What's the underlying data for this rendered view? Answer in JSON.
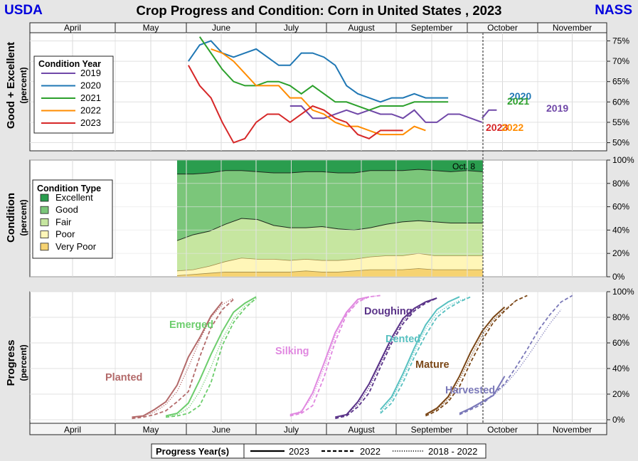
{
  "header": {
    "left": "USDA",
    "right": "NASS",
    "title": "Crop Progress and Condition: Corn in United States , 2023"
  },
  "months": [
    "April",
    "May",
    "June",
    "July",
    "August",
    "September",
    "October",
    "November"
  ],
  "marker_label": "Oct. 8",
  "panels": {
    "good_excellent": {
      "ylabel": "Good + Excellent",
      "ylabel_sub": "(percent)",
      "ticks": [
        "75%",
        "70%",
        "65%",
        "60%",
        "55%",
        "50%"
      ]
    },
    "condition": {
      "ylabel": "Condition",
      "ylabel_sub": "(percent)",
      "ticks": [
        "100%",
        "80%",
        "60%",
        "40%",
        "20%",
        "0%"
      ]
    },
    "progress": {
      "ylabel": "Progress",
      "ylabel_sub": "(percent)",
      "ticks": [
        "100%",
        "80%",
        "60%",
        "40%",
        "20%",
        "0%"
      ]
    }
  },
  "legends": {
    "condition_year": {
      "title": "Condition Year",
      "items": [
        "2019",
        "2020",
        "2021",
        "2022",
        "2023"
      ]
    },
    "condition_type": {
      "title": "Condition Type",
      "items": [
        "Excellent",
        "Good",
        "Fair",
        "Poor",
        "Very Poor"
      ]
    },
    "progress_year": {
      "title": "Progress Year(s)",
      "items": [
        "2023",
        "2022",
        "2018 - 2022"
      ]
    }
  },
  "chart_data": [
    {
      "type": "line",
      "title": "Good + Excellent",
      "x_unit": "week",
      "ylim": [
        48,
        77
      ],
      "series": [
        {
          "name": "2019",
          "color": "#7048a8",
          "x": [
            10,
            11,
            12,
            13,
            14,
            15,
            16,
            17,
            18,
            19,
            20,
            21,
            22,
            23,
            24,
            25,
            26,
            27
          ],
          "values": [
            59,
            59,
            56,
            56,
            57,
            58,
            57,
            58,
            57,
            57,
            56,
            58,
            55,
            55,
            57,
            57,
            56,
            55
          ],
          "end_values": [
            56,
            58,
            58
          ]
        },
        {
          "name": "2020",
          "color": "#1f77b4",
          "x": [
            1,
            2,
            3,
            4,
            5,
            6,
            7,
            8,
            9,
            10,
            11,
            12,
            13,
            14,
            15,
            16,
            17,
            18,
            19,
            20,
            21,
            22,
            23,
            24
          ],
          "values": [
            70,
            74,
            75,
            72,
            71,
            72,
            73,
            71,
            69,
            69,
            72,
            72,
            71,
            69,
            64,
            62,
            61,
            60,
            61,
            61,
            62,
            61,
            61,
            61
          ]
        },
        {
          "name": "2021",
          "color": "#2ca02c",
          "x": [
            2,
            3,
            4,
            5,
            6,
            7,
            8,
            9,
            10,
            11,
            12,
            13,
            14,
            15,
            16,
            17,
            18,
            19,
            20,
            21,
            22,
            23,
            24
          ],
          "values": [
            76,
            72,
            68,
            65,
            64,
            64,
            65,
            65,
            64,
            62,
            64,
            62,
            60,
            60,
            59,
            58,
            59,
            59,
            59,
            60,
            60,
            60,
            60
          ]
        },
        {
          "name": "2022",
          "color": "#ff8c00",
          "x": [
            3,
            4,
            5,
            6,
            7,
            8,
            9,
            10,
            11,
            12,
            13,
            14,
            15,
            16,
            17,
            18,
            19,
            20,
            21,
            22
          ],
          "values": [
            73,
            72,
            70,
            67,
            64,
            64,
            64,
            61,
            61,
            58,
            57,
            55,
            54,
            54,
            53,
            52,
            52,
            52,
            54,
            53
          ]
        },
        {
          "name": "2023",
          "color": "#d62728",
          "x": [
            1,
            2,
            3,
            4,
            5,
            6,
            7,
            8,
            9,
            10,
            11,
            12,
            13,
            14,
            15,
            16,
            17,
            18,
            19,
            20
          ],
          "values": [
            69,
            64,
            61,
            55,
            50,
            51,
            55,
            57,
            57,
            55,
            57,
            59,
            58,
            56,
            55,
            52,
            51,
            53,
            53,
            53
          ]
        }
      ],
      "end_labels": [
        "2020",
        "2021",
        "2019",
        "2023",
        "2022"
      ]
    },
    {
      "type": "area",
      "title": "Condition",
      "ylim": [
        0,
        100
      ],
      "categories": [
        "Very Poor",
        "Poor",
        "Fair",
        "Good",
        "Excellent"
      ],
      "x_unit": "week",
      "x": [
        0,
        1,
        2,
        3,
        4,
        5,
        6,
        7,
        8,
        9,
        10,
        11,
        12,
        13,
        14,
        15,
        16,
        17,
        18,
        19
      ],
      "cumulative_tops": [
        {
          "name": "Very Poor",
          "color": "#f6d372",
          "values": [
            1,
            2,
            3,
            4,
            4,
            4,
            4,
            4,
            5,
            4,
            4,
            5,
            6,
            6,
            6,
            7,
            6,
            6,
            6,
            6
          ]
        },
        {
          "name": "Poor",
          "color": "#fff6b8",
          "values": [
            5,
            6,
            9,
            13,
            16,
            15,
            15,
            14,
            15,
            14,
            14,
            15,
            17,
            18,
            18,
            20,
            18,
            18,
            18,
            18
          ]
        },
        {
          "name": "Fair",
          "color": "#c6e6a0",
          "values": [
            31,
            36,
            39,
            45,
            50,
            49,
            44,
            42,
            42,
            43,
            41,
            40,
            42,
            45,
            47,
            48,
            47,
            46,
            46,
            46
          ]
        },
        {
          "name": "Good",
          "color": "#7bc67a",
          "values": [
            88,
            88,
            89,
            91,
            91,
            90,
            89,
            89,
            90,
            90,
            89,
            89,
            91,
            91,
            91,
            92,
            91,
            90,
            91,
            90
          ]
        },
        {
          "name": "Excellent",
          "color": "#2a9d4e",
          "values": [
            100,
            100,
            100,
            100,
            100,
            100,
            100,
            100,
            100,
            100,
            100,
            100,
            100,
            100,
            100,
            100,
            100,
            100,
            100,
            100
          ]
        }
      ]
    },
    {
      "type": "line",
      "title": "Progress",
      "ylim": [
        0,
        100
      ],
      "x_unit": "week",
      "crop_stages": [
        {
          "name": "Planted",
          "color": "#b36a6a",
          "y2023": {
            "x": [
              -4,
              -3,
              -2,
              -1,
              0,
              1,
              2,
              3,
              4
            ],
            "values": [
              2,
              3,
              8,
              14,
              27,
              49,
              64,
              81,
              92
            ]
          },
          "y2022": {
            "x": [
              -4,
              -3,
              -2,
              -1,
              0,
              1,
              2,
              3,
              4,
              5
            ],
            "values": [
              1,
              2,
              4,
              7,
              14,
              22,
              49,
              72,
              86,
              94
            ]
          },
          "avg": {
            "x": [
              -4,
              -3,
              -2,
              -1,
              0,
              1,
              2,
              3,
              4,
              5
            ],
            "values": [
              2,
              3,
              6,
              12,
              22,
              41,
              62,
              80,
              90,
              95
            ]
          }
        },
        {
          "name": "Emerged",
          "color": "#6ccd6c",
          "y2023": {
            "x": [
              -1,
              0,
              1,
              2,
              3,
              4,
              5,
              6,
              7
            ],
            "values": [
              3,
              5,
              13,
              31,
              51,
              69,
              84,
              91,
              96
            ]
          },
          "y2022": {
            "x": [
              -1,
              0,
              1,
              2,
              3,
              4,
              5,
              6,
              7
            ],
            "values": [
              2,
              3,
              5,
              11,
              29,
              58,
              76,
              87,
              95
            ]
          },
          "avg": {
            "x": [
              -1,
              0,
              1,
              2,
              3,
              4,
              5,
              6,
              7
            ],
            "values": [
              2,
              4,
              9,
              22,
              41,
              63,
              79,
              89,
              94
            ]
          }
        },
        {
          "name": "Silking",
          "color": "#e088e0",
          "y2023": {
            "x": [
              10,
              11,
              12,
              13,
              14,
              15,
              16,
              17
            ],
            "values": [
              4,
              6,
              21,
              44,
              68,
              84,
              94,
              96
            ]
          },
          "y2022": {
            "x": [
              10,
              11,
              12,
              13,
              14,
              15,
              16,
              17,
              18
            ],
            "values": [
              3,
              5,
              11,
              33,
              61,
              82,
              92,
              96,
              97
            ]
          },
          "avg": {
            "x": [
              10,
              11,
              12,
              13,
              14,
              15,
              16,
              17,
              18
            ],
            "values": [
              3,
              7,
              18,
              40,
              65,
              83,
              92,
              96,
              97
            ]
          }
        },
        {
          "name": "Doughing",
          "color": "#5a3388",
          "y2023": {
            "x": [
              14,
              15,
              16,
              17,
              18,
              19,
              20,
              21,
              22,
              23
            ],
            "values": [
              2,
              4,
              14,
              28,
              46,
              64,
              79,
              87,
              92,
              95
            ]
          },
          "y2022": {
            "x": [
              14,
              15,
              16,
              17,
              18,
              19,
              20,
              21,
              22,
              23
            ],
            "values": [
              1,
              3,
              10,
              21,
              41,
              60,
              75,
              85,
              91,
              95
            ]
          },
          "avg": {
            "x": [
              14,
              15,
              16,
              17,
              18,
              19,
              20,
              21,
              22,
              23
            ],
            "values": [
              2,
              4,
              12,
              25,
              44,
              62,
              77,
              86,
              92,
              95
            ]
          }
        },
        {
          "name": "Dented",
          "color": "#56c0c0",
          "y2023": {
            "x": [
              18,
              19,
              20,
              21,
              22,
              23,
              24,
              25
            ],
            "values": [
              8,
              18,
              36,
              56,
              74,
              86,
              92,
              96
            ]
          },
          "y2022": {
            "x": [
              18,
              19,
              20,
              21,
              22,
              23,
              24,
              25,
              26
            ],
            "values": [
              5,
              13,
              29,
              49,
              66,
              80,
              87,
              92,
              96
            ]
          },
          "avg": {
            "x": [
              18,
              19,
              20,
              21,
              22,
              23,
              24,
              25,
              26
            ],
            "values": [
              6,
              16,
              33,
              53,
              71,
              83,
              89,
              93,
              96
            ]
          }
        },
        {
          "name": "Mature",
          "color": "#7a4616",
          "y2023": {
            "x": [
              22,
              23,
              24,
              25,
              26,
              27,
              28,
              29
            ],
            "values": [
              4,
              9,
              18,
              34,
              53,
              69,
              80,
              88
            ]
          },
          "y2022": {
            "x": [
              22,
              23,
              24,
              25,
              26,
              27,
              28,
              29,
              30,
              31
            ],
            "values": [
              3,
              7,
              14,
              26,
              45,
              62,
              76,
              85,
              93,
              97
            ]
          },
          "avg": {
            "x": [
              22,
              23,
              24,
              25,
              26,
              27,
              28,
              29,
              30
            ],
            "values": [
              4,
              8,
              16,
              31,
              49,
              66,
              78,
              86,
              93
            ]
          }
        },
        {
          "name": "Harvested",
          "color": "#7a78b8",
          "y2023": {
            "x": [
              25,
              26,
              27,
              28,
              29
            ],
            "values": [
              5,
              9,
              14,
              19,
              34
            ]
          },
          "y2022": {
            "x": [
              25,
              26,
              27,
              28,
              29,
              30,
              31,
              32,
              33,
              34,
              35
            ],
            "values": [
              4,
              8,
              12,
              20,
              28,
              41,
              55,
              70,
              82,
              92,
              97
            ]
          },
          "avg": {
            "x": [
              25,
              26,
              27,
              28,
              29,
              30,
              31,
              32,
              33,
              34
            ],
            "values": [
              5,
              9,
              13,
              19,
              27,
              37,
              49,
              62,
              75,
              86
            ]
          }
        }
      ]
    }
  ]
}
